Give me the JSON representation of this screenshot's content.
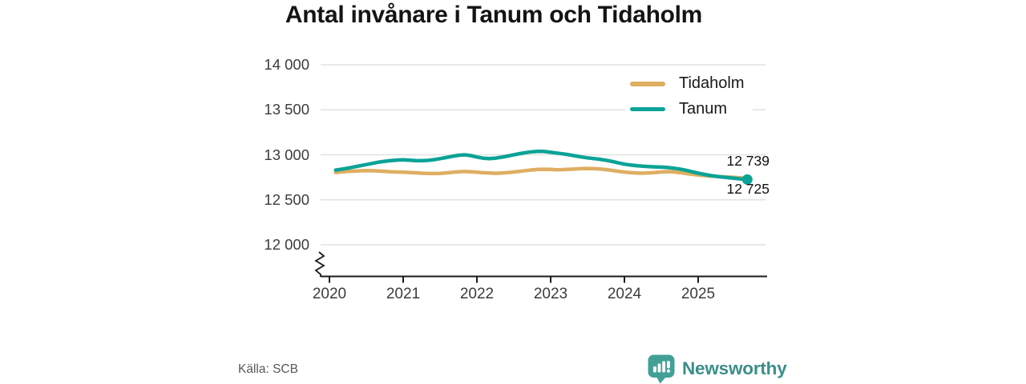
{
  "title": "Antal invånare i Tanum och Tidaholm",
  "source": "Källa: SCB",
  "branding": {
    "logo_text": "Newsworthy",
    "logo_color": "#3a8e88",
    "icon_color": "#43a096"
  },
  "chart_data": {
    "type": "line",
    "title": "Antal invånare i Tanum och Tidaholm",
    "x_start": "2020-01",
    "x_freq": "monthly",
    "x_ticks": [
      2020,
      2021,
      2022,
      2023,
      2024,
      2025
    ],
    "y_ticks": [
      {
        "value": 14000,
        "label": "14 000"
      },
      {
        "value": 13500,
        "label": "13 500"
      },
      {
        "value": 13000,
        "label": "13 000"
      },
      {
        "value": 12500,
        "label": "12 500"
      },
      {
        "value": 12000,
        "label": "12 000"
      }
    ],
    "ylim": [
      12000,
      14000
    ],
    "y_axis_break": true,
    "grid": true,
    "legend_position": "top-right",
    "colors": {
      "grid": "#e2e2e2",
      "axis": "#1a1a1a"
    },
    "series": [
      {
        "name": "Tidaholm",
        "color": "#dfae62",
        "end_label": "12 739",
        "end_value": 12739,
        "end_dot": false,
        "values": [
          12804,
          12810,
          12815,
          12819,
          12822,
          12824,
          12823,
          12820,
          12816,
          12812,
          12809,
          12807,
          12804,
          12800,
          12796,
          12793,
          12792,
          12794,
          12799,
          12805,
          12811,
          12814,
          12811,
          12806,
          12801,
          12797,
          12795,
          12797,
          12802,
          12809,
          12817,
          12825,
          12832,
          12837,
          12839,
          12837,
          12834,
          12836,
          12839,
          12843,
          12846,
          12848,
          12846,
          12842,
          12836,
          12827,
          12817,
          12808,
          12802,
          12798,
          12796,
          12799,
          12804,
          12809,
          12813,
          12810,
          12803,
          12793,
          12783,
          12775,
          12769,
          12764,
          12760,
          12756,
          12752,
          12748,
          12743,
          12739
        ]
      },
      {
        "name": "Tanum",
        "color": "#0aa396",
        "end_label": "12 725",
        "end_value": 12725,
        "end_dot": true,
        "values": [
          12830,
          12840,
          12852,
          12865,
          12878,
          12892,
          12905,
          12918,
          12928,
          12936,
          12941,
          12944,
          12940,
          12936,
          12934,
          12938,
          12946,
          12957,
          12970,
          12983,
          12995,
          13000,
          12991,
          12975,
          12963,
          12958,
          12963,
          12973,
          12986,
          13000,
          13013,
          13025,
          13034,
          13039,
          13036,
          13028,
          13020,
          13011,
          13000,
          12988,
          12976,
          12966,
          12958,
          12950,
          12940,
          12926,
          12910,
          12896,
          12886,
          12879,
          12873,
          12869,
          12866,
          12863,
          12859,
          12852,
          12842,
          12828,
          12812,
          12796,
          12782,
          12770,
          12760,
          12752,
          12746,
          12739,
          12731,
          12725
        ]
      }
    ]
  }
}
